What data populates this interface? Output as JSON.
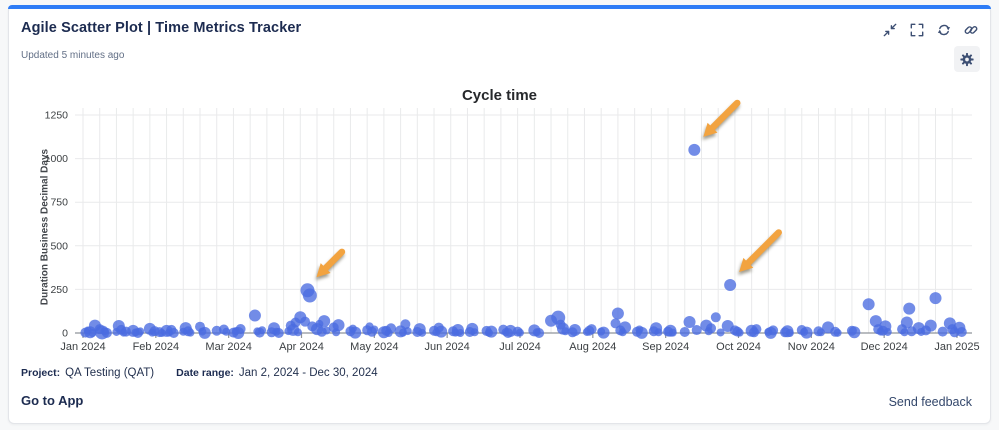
{
  "widget": {
    "title": "Agile Scatter Plot | Time Metrics Tracker",
    "updated": "Updated 5 minutes ago",
    "accent_color": "#2e7cf6",
    "toolbar_icons": [
      "collapse-icon",
      "fullscreen-icon",
      "refresh-icon",
      "link-icon",
      "settings-gear-icon"
    ]
  },
  "chart_data": {
    "type": "scatter",
    "title": "Cycle time",
    "xlabel": "",
    "ylabel": "Duration Business Decimal Days",
    "ylim": [
      0,
      1250
    ],
    "yticks": [
      0,
      250,
      500,
      750,
      1000,
      1250
    ],
    "xticks": [
      "Jan 2024",
      "Feb 2024",
      "Mar 2024",
      "Apr 2024",
      "May 2024",
      "Jun 2024",
      "Jul 2024",
      "Aug 2024",
      "Sep 2024",
      "Oct 2024",
      "Nov 2024",
      "Dec 2024",
      "Jan 2025"
    ],
    "x_unit": "day-of-year starting Jan 1 2024, 366-day span",
    "grid": {
      "horizontal_step": 250,
      "vertical": "weekly"
    },
    "legend": "none",
    "point_color": "#4a6ce0",
    "point_opacity": 0.78,
    "arrow_color": "#f2a340",
    "points": [
      [
        2,
        2,
        5
      ],
      [
        3,
        14,
        4
      ],
      [
        4,
        4,
        6
      ],
      [
        5,
        0,
        4
      ],
      [
        6,
        42,
        6
      ],
      [
        8,
        22,
        5
      ],
      [
        9,
        3,
        7
      ],
      [
        10,
        10,
        4
      ],
      [
        11,
        1,
        5
      ],
      [
        15,
        6,
        4
      ],
      [
        16,
        40,
        6
      ],
      [
        17,
        18,
        5
      ],
      [
        18,
        2,
        4
      ],
      [
        19,
        8,
        5
      ],
      [
        22,
        12,
        6
      ],
      [
        23,
        3,
        4
      ],
      [
        24,
        0,
        5
      ],
      [
        25,
        9,
        4
      ],
      [
        29,
        24,
        6
      ],
      [
        30,
        2,
        4
      ],
      [
        31,
        11,
        5
      ],
      [
        33,
        5,
        5
      ],
      [
        34,
        0,
        4
      ],
      [
        36,
        12,
        6
      ],
      [
        37,
        2,
        4
      ],
      [
        38,
        18,
        5
      ],
      [
        39,
        0,
        5
      ],
      [
        43,
        7,
        4
      ],
      [
        44,
        28,
        6
      ],
      [
        45,
        10,
        5
      ],
      [
        46,
        2,
        4
      ],
      [
        50,
        36,
        5
      ],
      [
        51,
        8,
        4
      ],
      [
        52,
        1,
        6
      ],
      [
        57,
        13,
        5
      ],
      [
        60,
        20,
        5
      ],
      [
        61,
        7,
        4
      ],
      [
        64,
        2,
        5
      ],
      [
        65,
        11,
        4
      ],
      [
        66,
        0,
        6
      ],
      [
        67,
        23,
        5
      ],
      [
        73,
        100,
        6
      ],
      [
        74,
        9,
        4
      ],
      [
        75,
        2,
        5
      ],
      [
        76,
        16,
        4
      ],
      [
        80,
        4,
        5
      ],
      [
        81,
        27,
        6
      ],
      [
        82,
        7,
        4
      ],
      [
        83,
        0,
        5
      ],
      [
        87,
        11,
        4
      ],
      [
        88,
        42,
        5
      ],
      [
        89,
        18,
        6
      ],
      [
        90,
        60,
        5
      ],
      [
        91,
        4,
        4
      ],
      [
        92,
        90,
        6
      ],
      [
        94,
        65,
        5
      ],
      [
        95,
        245,
        7
      ],
      [
        96,
        215,
        7
      ],
      [
        97,
        38,
        5
      ],
      [
        99,
        22,
        6
      ],
      [
        100,
        52,
        4
      ],
      [
        101,
        7,
        5
      ],
      [
        102,
        68,
        6
      ],
      [
        103,
        14,
        4
      ],
      [
        106,
        32,
        5
      ],
      [
        107,
        4,
        4
      ],
      [
        108,
        45,
        6
      ],
      [
        113,
        10,
        5
      ],
      [
        114,
        25,
        4
      ],
      [
        115,
        2,
        6
      ],
      [
        120,
        16,
        5
      ],
      [
        121,
        38,
        4
      ],
      [
        122,
        7,
        5
      ],
      [
        123,
        20,
        4
      ],
      [
        127,
        4,
        6
      ],
      [
        128,
        13,
        5
      ],
      [
        129,
        0,
        4
      ],
      [
        130,
        27,
        5
      ],
      [
        134,
        9,
        6
      ],
      [
        135,
        2,
        4
      ],
      [
        136,
        50,
        5
      ],
      [
        137,
        11,
        4
      ],
      [
        141,
        6,
        5
      ],
      [
        142,
        22,
        6
      ],
      [
        143,
        1,
        4
      ],
      [
        148,
        13,
        5
      ],
      [
        149,
        4,
        4
      ],
      [
        150,
        31,
        5
      ],
      [
        151,
        8,
        6
      ],
      [
        156,
        10,
        5
      ],
      [
        157,
        2,
        4
      ],
      [
        158,
        17,
        6
      ],
      [
        159,
        0,
        4
      ],
      [
        163,
        6,
        5
      ],
      [
        164,
        24,
        6
      ],
      [
        165,
        4,
        4
      ],
      [
        170,
        12,
        5
      ],
      [
        171,
        1,
        4
      ],
      [
        172,
        8,
        6
      ],
      [
        177,
        19,
        5
      ],
      [
        178,
        5,
        4
      ],
      [
        179,
        0,
        5
      ],
      [
        180,
        12,
        6
      ],
      [
        183,
        8,
        5
      ],
      [
        184,
        2,
        4
      ],
      [
        190,
        15,
        6
      ],
      [
        191,
        4,
        4
      ],
      [
        192,
        0,
        5
      ],
      [
        197,
        70,
        6
      ],
      [
        200,
        88,
        7
      ],
      [
        201,
        48,
        5
      ],
      [
        202,
        25,
        6
      ],
      [
        203,
        10,
        4
      ],
      [
        206,
        4,
        5
      ],
      [
        207,
        17,
        6
      ],
      [
        212,
        6,
        4
      ],
      [
        213,
        13,
        5
      ],
      [
        214,
        22,
        5
      ],
      [
        218,
        8,
        4
      ],
      [
        219,
        2,
        6
      ],
      [
        224,
        55,
        5
      ],
      [
        225,
        112,
        6
      ],
      [
        226,
        15,
        5
      ],
      [
        227,
        4,
        4
      ],
      [
        228,
        32,
        6
      ],
      [
        233,
        7,
        5
      ],
      [
        234,
        20,
        4
      ],
      [
        235,
        1,
        6
      ],
      [
        240,
        10,
        5
      ],
      [
        241,
        27,
        6
      ],
      [
        242,
        4,
        4
      ],
      [
        246,
        8,
        5
      ],
      [
        247,
        13,
        6
      ],
      [
        248,
        2,
        4
      ],
      [
        253,
        6,
        5
      ],
      [
        255,
        63,
        6
      ],
      [
        257,
        1050,
        6
      ],
      [
        258,
        17,
        5
      ],
      [
        262,
        42,
        6
      ],
      [
        263,
        10,
        4
      ],
      [
        264,
        27,
        5
      ],
      [
        266,
        90,
        5
      ],
      [
        268,
        3,
        4
      ],
      [
        271,
        40,
        6
      ],
      [
        272,
        275,
        6
      ],
      [
        274,
        15,
        5
      ],
      [
        275,
        8,
        5
      ],
      [
        276,
        2,
        4
      ],
      [
        281,
        13,
        6
      ],
      [
        282,
        4,
        5
      ],
      [
        283,
        22,
        5
      ],
      [
        288,
        6,
        4
      ],
      [
        289,
        1,
        6
      ],
      [
        290,
        15,
        5
      ],
      [
        295,
        4,
        5
      ],
      [
        296,
        10,
        6
      ],
      [
        297,
        0,
        4
      ],
      [
        302,
        17,
        5
      ],
      [
        303,
        6,
        4
      ],
      [
        304,
        2,
        6
      ],
      [
        309,
        10,
        5
      ],
      [
        310,
        4,
        4
      ],
      [
        313,
        32,
        6
      ],
      [
        316,
        7,
        5
      ],
      [
        317,
        1,
        4
      ],
      [
        323,
        13,
        5
      ],
      [
        324,
        4,
        6
      ],
      [
        330,
        165,
        6
      ],
      [
        333,
        68,
        6
      ],
      [
        334,
        22,
        5
      ],
      [
        335,
        8,
        4
      ],
      [
        336,
        13,
        5
      ],
      [
        337,
        38,
        6
      ],
      [
        338,
        6,
        4
      ],
      [
        344,
        22,
        5
      ],
      [
        345,
        4,
        4
      ],
      [
        346,
        60,
        6
      ],
      [
        347,
        140,
        6
      ],
      [
        348,
        10,
        5
      ],
      [
        351,
        28,
        6
      ],
      [
        352,
        6,
        4
      ],
      [
        354,
        15,
        5
      ],
      [
        356,
        42,
        6
      ],
      [
        358,
        200,
        6
      ],
      [
        361,
        8,
        5
      ],
      [
        364,
        55,
        6
      ],
      [
        365,
        22,
        5
      ],
      [
        366,
        4,
        5
      ],
      [
        368,
        30,
        6
      ],
      [
        369,
        6,
        5
      ]
    ],
    "annotations": [
      {
        "type": "arrow",
        "day": 95,
        "value": 245,
        "len": 36
      },
      {
        "type": "arrow",
        "day": 257,
        "value": 1050,
        "len": 48
      },
      {
        "type": "arrow",
        "day": 272,
        "value": 275,
        "len": 56
      }
    ]
  },
  "footer": {
    "project_label": "Project:",
    "project_value": "QA Testing (QAT)",
    "daterange_label": "Date range:",
    "daterange_value": "Jan 2, 2024 - Dec 30, 2024",
    "go_to_app": "Go to App",
    "send_feedback": "Send feedback"
  }
}
